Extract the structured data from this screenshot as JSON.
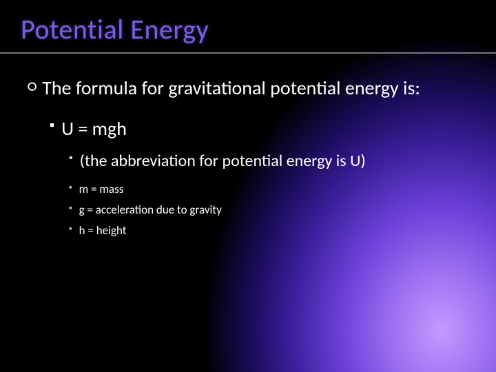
{
  "title": "Potential Energy",
  "colors": {
    "title_color": "#7a5fe6",
    "text_color": "#ffffff",
    "background_base": "#000000",
    "gradient_stops": [
      "#c49aff",
      "#9a6df0",
      "#6b3fd8",
      "#3b1f9a",
      "#1a0c5a",
      "#000000"
    ],
    "divider_color": "#888888"
  },
  "typography": {
    "title_fontsize": 40,
    "body_fontsize": 28,
    "sub_fontsize": 24,
    "subsub_fontsize": 17,
    "font_family": "Segoe UI / Candara"
  },
  "bullets": {
    "lvl1": {
      "glyph": "○",
      "text": "The formula for gravitational potential energy is:"
    },
    "lvl2": {
      "glyph": "▪",
      "text": "U = mgh"
    },
    "lvl3": {
      "glyph": "▪",
      "text": "(the abbreviation for potential energy is U)"
    },
    "lvl4": [
      {
        "glyph": "▪",
        "text": "m = mass"
      },
      {
        "glyph": "▪",
        "text": "g = acceleration due to gravity"
      },
      {
        "glyph": "▪",
        "text": "h = height"
      }
    ]
  }
}
